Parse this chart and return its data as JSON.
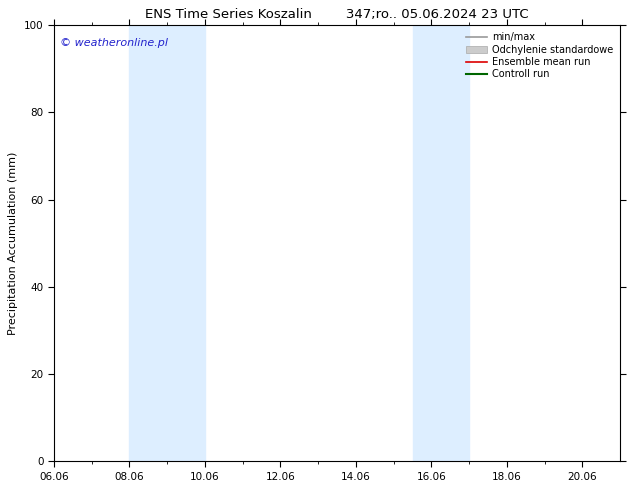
{
  "title_left": "ENS Time Series Koszalin",
  "title_right": "347;ro.. 05.06.2024 23 UTC",
  "ylabel": "Precipitation Accumulation (mm)",
  "ylim": [
    0,
    100
  ],
  "yticks": [
    0,
    20,
    40,
    60,
    80,
    100
  ],
  "xlim": [
    6.0,
    21.0
  ],
  "xtick_positions": [
    6,
    8,
    10,
    12,
    14,
    16,
    18,
    20
  ],
  "xtick_labels": [
    "06.06",
    "08.06",
    "10.06",
    "12.06",
    "14.06",
    "16.06",
    "18.06",
    "20.06"
  ],
  "shaded_regions": [
    {
      "xmin": 8.0,
      "xmax": 10.0,
      "color": "#ddeeff"
    },
    {
      "xmin": 15.5,
      "xmax": 17.0,
      "color": "#ddeeff"
    }
  ],
  "watermark": "© weatheronline.pl",
  "watermark_color": "#2222cc",
  "background_color": "#ffffff",
  "legend_entries": [
    {
      "label": "min/max",
      "color": "#999999",
      "lw": 1.2,
      "type": "line"
    },
    {
      "label": "Odchylenie standardowe",
      "color": "#cccccc",
      "lw": 5,
      "type": "patch"
    },
    {
      "label": "Ensemble mean run",
      "color": "#dd0000",
      "lw": 1.2,
      "type": "line"
    },
    {
      "label": "Controll run",
      "color": "#006600",
      "lw": 1.5,
      "type": "line"
    }
  ],
  "title_fontsize": 9.5,
  "tick_fontsize": 7.5,
  "ylabel_fontsize": 8,
  "watermark_fontsize": 8,
  "legend_fontsize": 7
}
